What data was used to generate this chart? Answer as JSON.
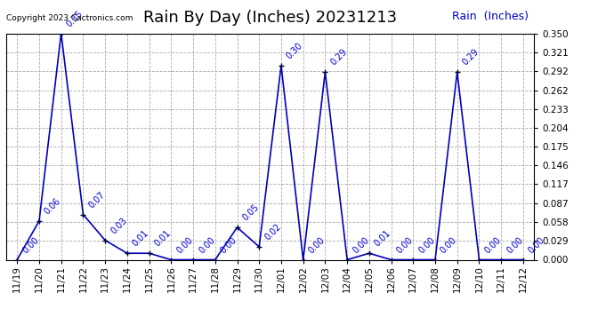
{
  "title": "Rain By Day (Inches) 20231213",
  "labels": [
    "11/19",
    "11/20",
    "11/21",
    "11/22",
    "11/23",
    "11/24",
    "11/25",
    "11/26",
    "11/27",
    "11/28",
    "11/29",
    "11/30",
    "12/01",
    "12/02",
    "12/03",
    "12/04",
    "12/05",
    "12/06",
    "12/07",
    "12/08",
    "12/09",
    "12/10",
    "12/11",
    "12/12"
  ],
  "values": [
    0.0,
    0.06,
    0.35,
    0.07,
    0.03,
    0.01,
    0.01,
    0.0,
    0.0,
    0.0,
    0.05,
    0.02,
    0.3,
    0.0,
    0.29,
    0.0,
    0.01,
    0.0,
    0.0,
    0.0,
    0.29,
    0.0,
    0.0,
    0.0
  ],
  "line_color": "#0000bb",
  "marker_color": "#000033",
  "background_color": "#ffffff",
  "grid_color": "#aaaaaa",
  "title_color": "#000000",
  "legend_label": "Rain  (Inches)",
  "legend_color": "#0000cc",
  "copyright_text": "Copyright 2023 Cactronics.com",
  "copyright_color": "#000000",
  "ylim": [
    0.0,
    0.35
  ],
  "yticks": [
    0.0,
    0.029,
    0.058,
    0.087,
    0.117,
    0.146,
    0.175,
    0.204,
    0.233,
    0.262,
    0.292,
    0.321,
    0.35
  ],
  "annotation_color": "#0000cc",
  "title_fontsize": 13,
  "tick_fontsize": 7.5,
  "annotation_fontsize": 7,
  "legend_fontsize": 9
}
